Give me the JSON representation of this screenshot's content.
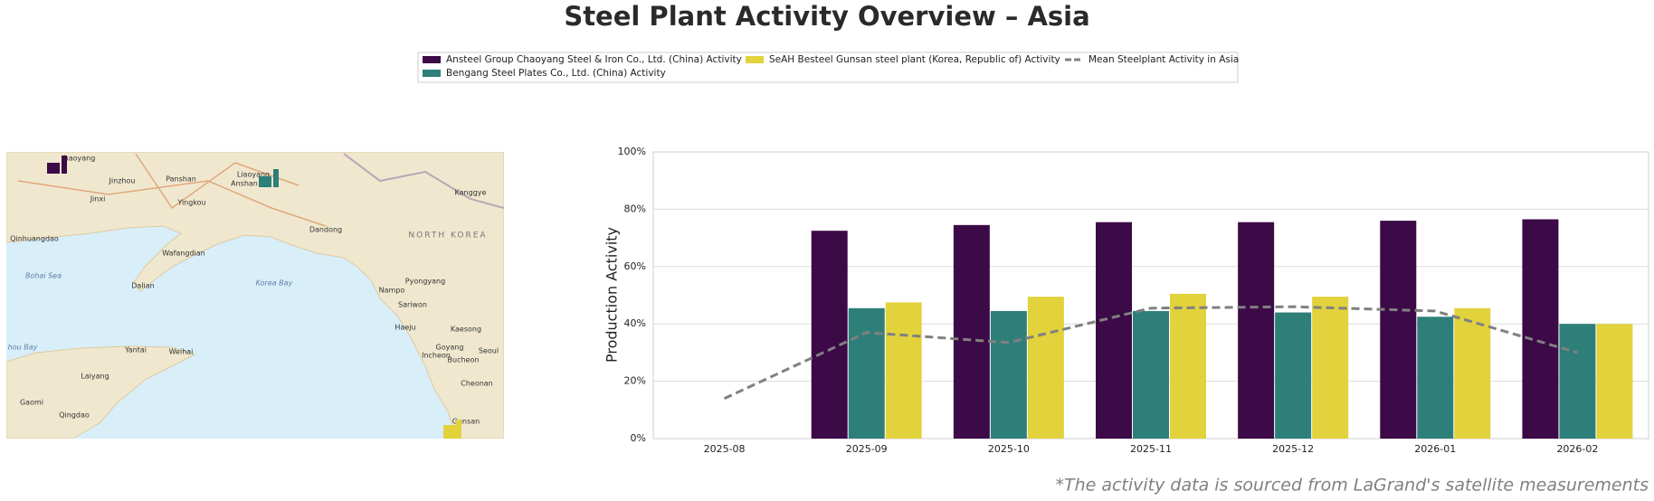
{
  "chart_data": {
    "type": "bar",
    "title": "Steel Plant Activity Overview – Asia",
    "y_label": "Production Activity",
    "footnote": "*The activity data is sourced from LaGrand's satellite measurements",
    "categories": [
      "2025-08",
      "2025-09",
      "2025-10",
      "2025-11",
      "2025-12",
      "2026-01",
      "2026-02"
    ],
    "series": [
      {
        "name": "Ansteel Group Chaoyang Steel & Iron Co., Ltd. (China) Activity",
        "color": "#3c0a47",
        "type": "bar",
        "values": [
          null,
          72.5,
          74.5,
          75.5,
          75.5,
          76,
          76.5
        ]
      },
      {
        "name": "Bengang Steel Plates Co., Ltd. (China) Activity",
        "color": "#2e7f7a",
        "type": "bar",
        "values": [
          null,
          45.5,
          44.5,
          44.5,
          44,
          42.5,
          40
        ]
      },
      {
        "name": "SeAH Besteel Gunsan steel plant (Korea, Republic of) Activity",
        "color": "#e2d23c",
        "type": "bar",
        "values": [
          null,
          47.5,
          49.5,
          50.5,
          49.5,
          45.5,
          40
        ]
      },
      {
        "name": "Mean Steelplant Activity in Asia",
        "color": "#808080",
        "type": "line",
        "dashed": true,
        "values": [
          14,
          37,
          33.5,
          45.5,
          46,
          44.5,
          30
        ]
      }
    ],
    "ylim": [
      0,
      100
    ],
    "yticks": [
      {
        "value": 0,
        "label": "0%"
      },
      {
        "value": 20,
        "label": "20%"
      },
      {
        "value": 40,
        "label": "40%"
      },
      {
        "value": 60,
        "label": "60%"
      },
      {
        "value": 80,
        "label": "80%"
      },
      {
        "value": 100,
        "label": "100%"
      }
    ],
    "grid": true,
    "legend": "top"
  },
  "map": {
    "labels": [
      "haoyang",
      "Jinzhou",
      "Panshan",
      "Liaoyang",
      "Anshan",
      "Jinxi",
      "Yingkou",
      "Kanggye",
      "Dandong",
      "NORTH KOREA",
      "Qinhuangdao",
      "Wafangdian",
      "Bohai Sea",
      "Dalian",
      "Korea Bay",
      "Pyongyang",
      "Nampo",
      "Sariwon",
      "Haeju",
      "Kaesong",
      "Yantai",
      "Weihai",
      "Goyang",
      "Incheon",
      "Seoul",
      "Bucheon",
      "Laiyang",
      "Gaomi",
      "Qingdao",
      "Cheonan",
      "Gunsan",
      "hou Bay"
    ]
  }
}
